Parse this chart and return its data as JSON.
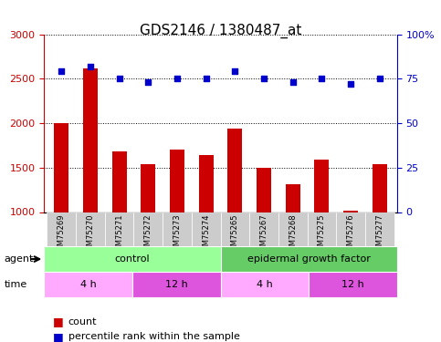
{
  "title": "GDS2146 / 1380487_at",
  "samples": [
    "GSM75269",
    "GSM75270",
    "GSM75271",
    "GSM75272",
    "GSM75273",
    "GSM75274",
    "GSM75265",
    "GSM75267",
    "GSM75268",
    "GSM75275",
    "GSM75276",
    "GSM75277"
  ],
  "counts": [
    2000,
    2620,
    1680,
    1540,
    1700,
    1640,
    1940,
    1500,
    1310,
    1590,
    1020,
    1540
  ],
  "percentiles": [
    79,
    82,
    75,
    73,
    75,
    75,
    79,
    75,
    73,
    75,
    72,
    75
  ],
  "ylim_left": [
    1000,
    3000
  ],
  "ylim_right": [
    0,
    100
  ],
  "yticks_left": [
    1000,
    1500,
    2000,
    2500,
    3000
  ],
  "yticks_right": [
    0,
    25,
    50,
    75,
    100
  ],
  "bar_color": "#cc0000",
  "scatter_color": "#0000cc",
  "agent_groups": [
    {
      "label": "control",
      "start": 0,
      "end": 6,
      "color": "#99ff99"
    },
    {
      "label": "epidermal growth factor",
      "start": 6,
      "end": 12,
      "color": "#66cc66"
    }
  ],
  "time_groups": [
    {
      "label": "4 h",
      "start": 0,
      "end": 3,
      "color": "#ffaaff"
    },
    {
      "label": "12 h",
      "start": 3,
      "end": 6,
      "color": "#dd55dd"
    },
    {
      "label": "4 h",
      "start": 6,
      "end": 9,
      "color": "#ffaaff"
    },
    {
      "label": "12 h",
      "start": 9,
      "end": 12,
      "color": "#dd55dd"
    }
  ],
  "legend_count_color": "#cc0000",
  "legend_percentile_color": "#0000cc",
  "grid_color": "#000000",
  "bg_color": "#ffffff",
  "plot_bg": "#ffffff",
  "xticklabel_bg": "#cccccc"
}
